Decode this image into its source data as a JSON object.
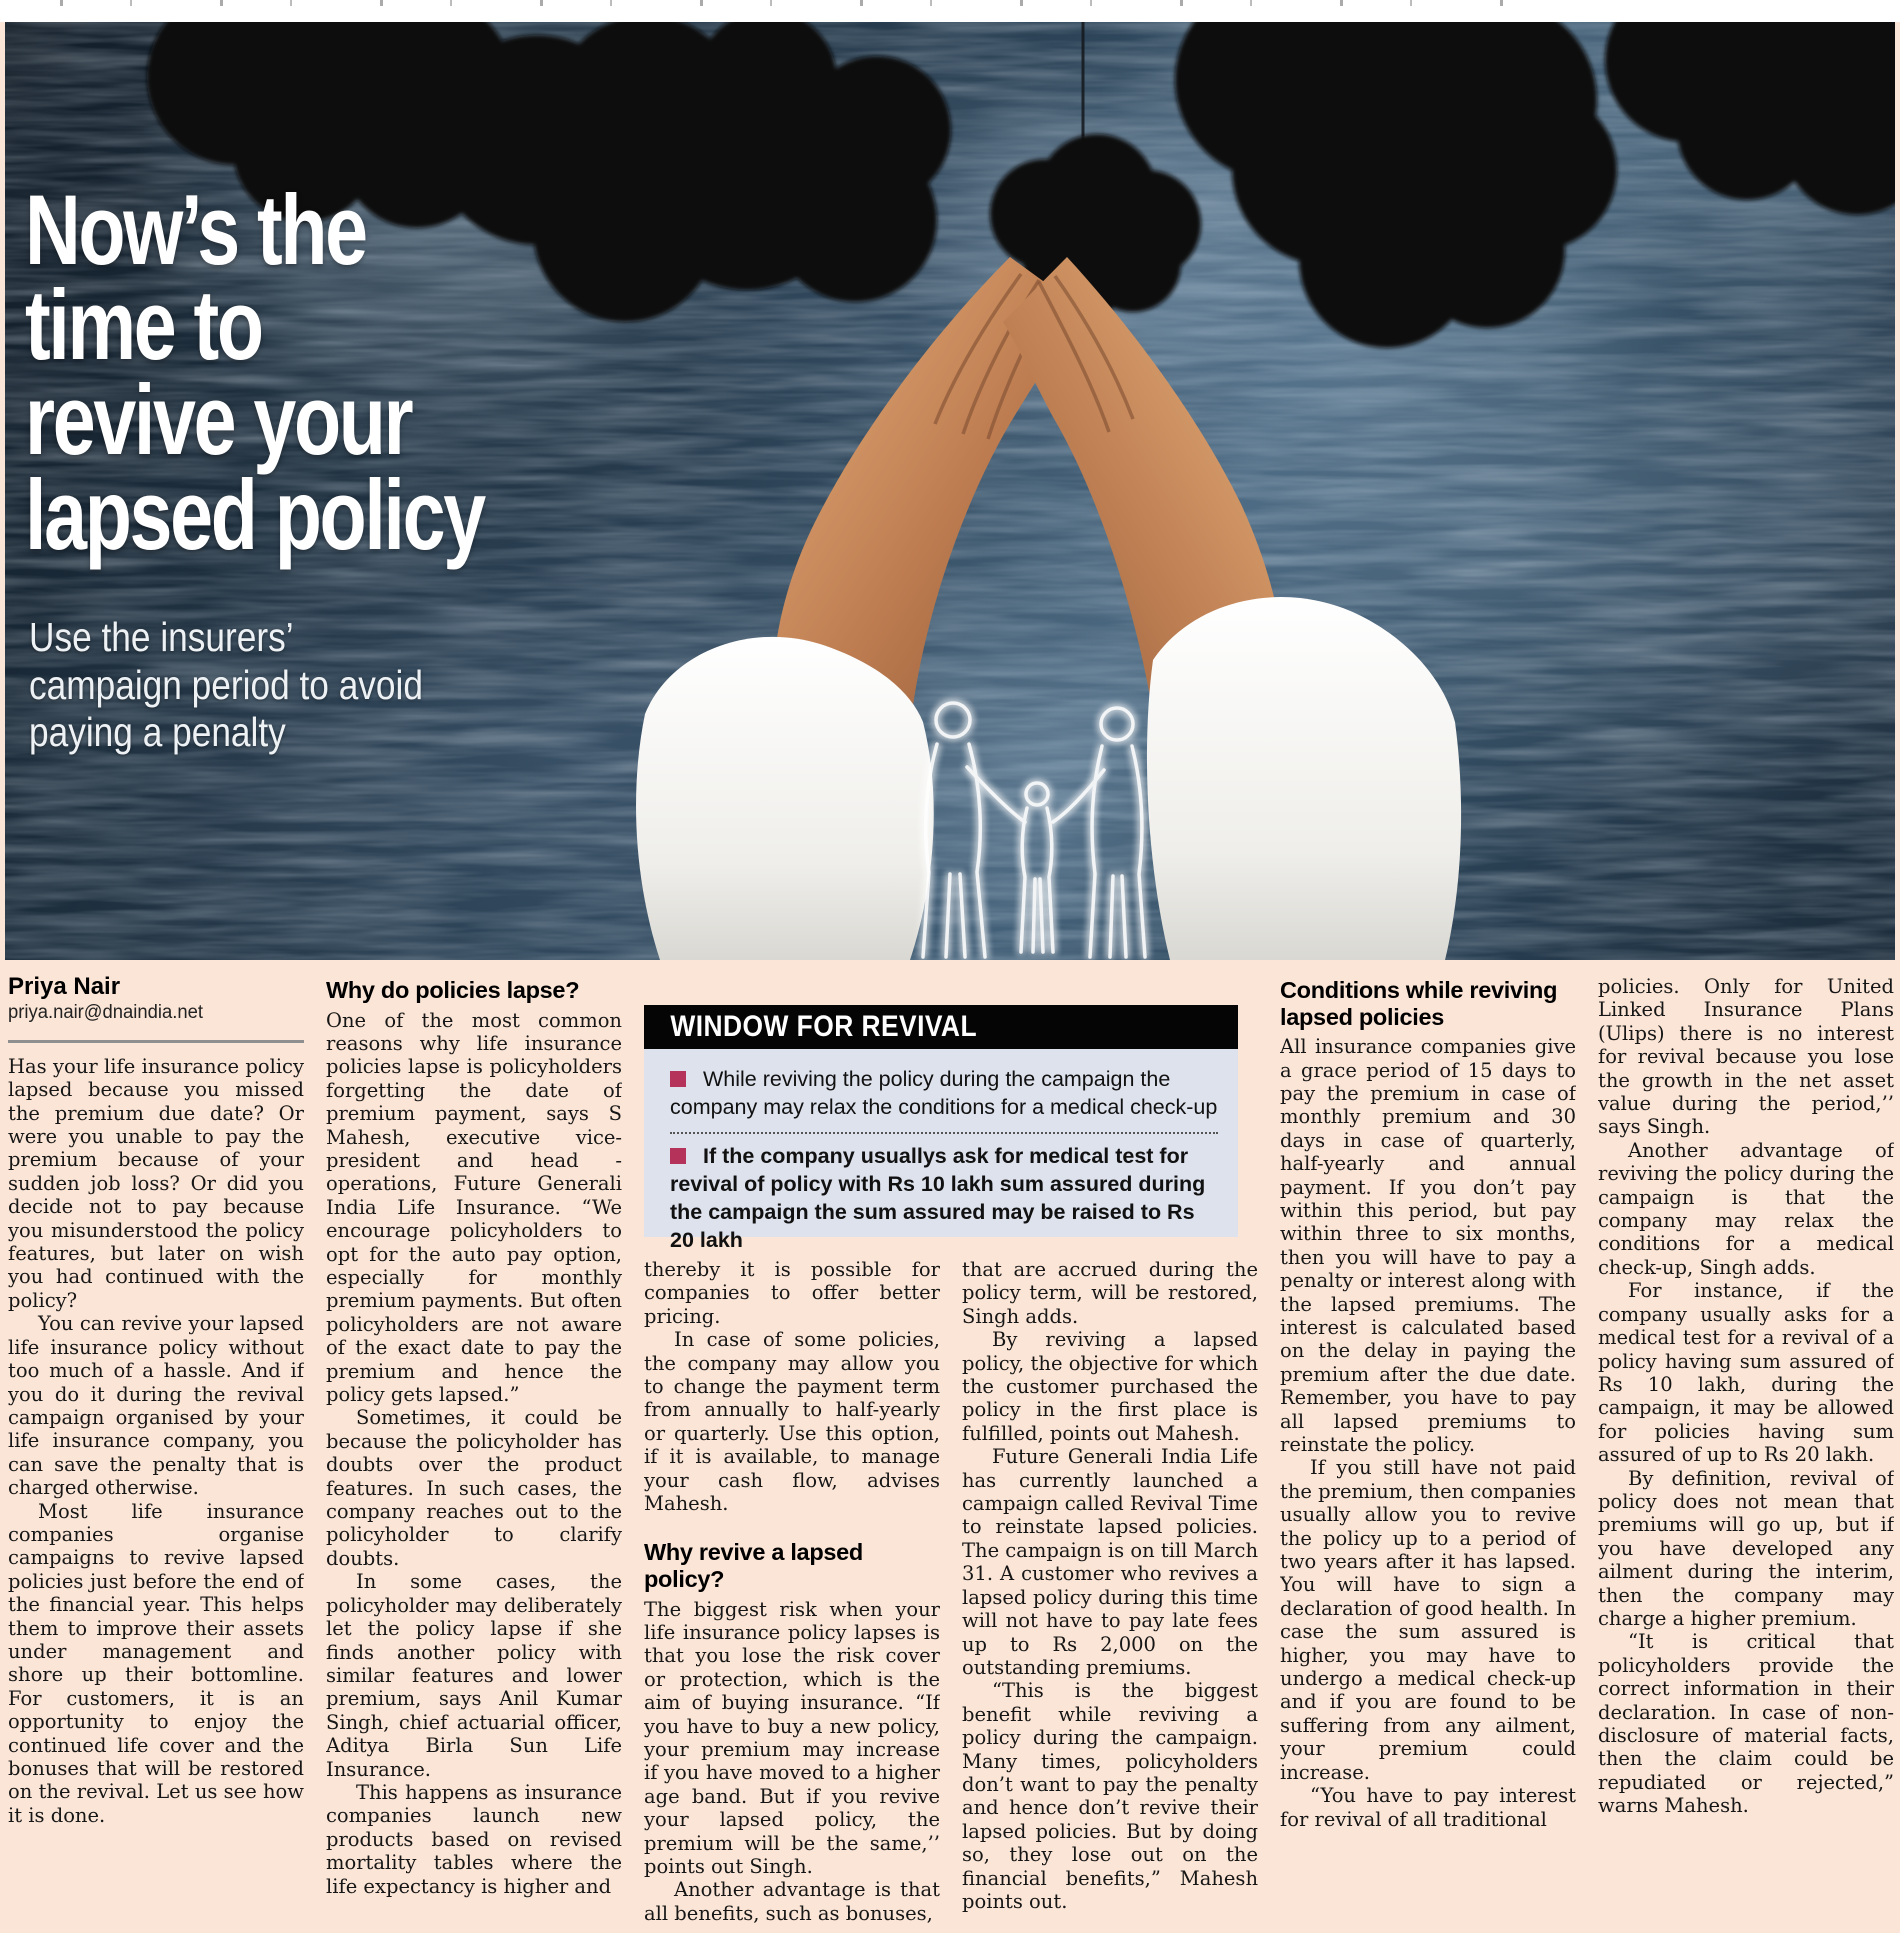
{
  "colors": {
    "page_bg": "#fbe5d6",
    "box_body_bg": "#dee2ed",
    "box_bar_bg": "#050505",
    "bullet_accent": "#b5335b",
    "headline_text": "#ffffff"
  },
  "hero": {
    "headline_lines": [
      "Now’s the",
      "time to",
      "revive your",
      "lapsed policy"
    ],
    "subhead_lines": [
      "Use the insurers’",
      "campaign period to avoid",
      "paying a penalty"
    ]
  },
  "byline": {
    "author": "Priya Nair",
    "email": "priya.nair@dnaindia.net"
  },
  "revival_box": {
    "title": "WINDOW FOR REVIVAL",
    "bullets": [
      {
        "bold": false,
        "text": "While reviving the policy during the campaign the company may relax the conditions for a medical check-up"
      },
      {
        "bold": true,
        "text": "If the company usuallys ask for medical test for revival of policy with Rs 10 lakh sum assured during the campaign the sum assured may be raised to Rs 20 lakh"
      }
    ]
  },
  "columns": [
    {
      "blocks": [
        {
          "type": "author"
        },
        {
          "type": "email"
        },
        {
          "type": "rule"
        },
        {
          "type": "para",
          "text": "Has your life insurance policy lapsed because you missed the premium due date? Or were you unable to pay the premium because of your sudden job loss? Or did you decide not to pay because you misunderstood the policy features, but later on wish you had continued with the policy?"
        },
        {
          "type": "para",
          "text": "You can revive your lapsed life insurance policy without too much of a hassle. And if you do it during the revival campaign organised by your life insurance company, you can save the penalty that is charged otherwise."
        },
        {
          "type": "para",
          "text": "Most life insurance companies organise campaigns to revive lapsed policies just before the end of the financial year. This helps them to improve their assets under management and shore up their bottomline. For customers, it is an opportunity to enjoy the continued life cover and the bonuses that will be restored on the revival. Let us see how it is done."
        }
      ]
    },
    {
      "blocks": [
        {
          "type": "heading",
          "text": "Why do policies lapse?"
        },
        {
          "type": "para",
          "text": "One of the most common reasons why life insurance policies lapse is policyholders forgetting the date of premium payment, says S Mahesh, executive vice-president and head - operations, Future Generali India Life Insurance. “We encourage policyholders to opt for the auto pay option, especially for monthly premium payments. But often policyholders are not aware of the exact date to pay the premium and hence the policy gets lapsed.”"
        },
        {
          "type": "para",
          "text": "Sometimes, it could be because the policyholder has doubts over the product features. In such cases, the company reaches out to the policyholder to clarify doubts."
        },
        {
          "type": "para",
          "text": "In some cases, the policyholder may deliberately let the policy lapse if she finds another policy with similar features and lower premium, says Anil Kumar Singh, chief actuarial officer, Aditya Birla Sun Life Insurance."
        },
        {
          "type": "para",
          "text": "This happens as insurance companies launch new products based on revised mortality tables where the life expectancy is higher and"
        }
      ]
    },
    {
      "blocks": [
        {
          "type": "para",
          "text": "thereby it is possible for companies to offer better pricing."
        },
        {
          "type": "para",
          "text": "In case of some policies, the company may allow you to change the payment term from annually to half-yearly or quarterly. Use this option, if it is available, to manage your cash flow, advises Mahesh."
        },
        {
          "type": "heading",
          "text": "Why revive a lapsed policy?"
        },
        {
          "type": "para",
          "text": "The biggest risk when your life insurance policy lapses is that you lose the risk cover or protection, which is the aim of buying insurance. “If you have to buy a new policy, your premium may increase if you have moved to a higher age band. But if you revive your lapsed policy, the premium will be the same,’’ points out Singh."
        },
        {
          "type": "para",
          "text": "Another advantage is that all benefits, such as bonuses,"
        }
      ]
    },
    {
      "blocks": [
        {
          "type": "para",
          "text": "that are accrued during the policy term, will be restored, Singh adds."
        },
        {
          "type": "para",
          "text": "By reviving a lapsed policy, the objective for which the customer purchased the policy in the first place is fulfilled, points out Mahesh."
        },
        {
          "type": "para",
          "text": "Future Generali India Life has currently launched a campaign called Revival Time to reinstate lapsed policies. The campaign is on till March 31. A customer who revives a lapsed policy during this time will not have to pay late fees up to Rs 2,000 on the outstanding premiums."
        },
        {
          "type": "para",
          "text": "“This is the biggest benefit while reviving a policy during the campaign. Many times, policyholders don’t want to pay the penalty and hence don’t revive their lapsed policies. But by doing so, they lose out on the financial benefits,” Mahesh points out."
        }
      ]
    },
    {
      "blocks": [
        {
          "type": "heading",
          "text": "Conditions while reviving lapsed policies"
        },
        {
          "type": "para",
          "text": "All insurance companies give a grace period of 15 days to pay the premium in case of monthly premium and 30 days in case of quarterly, half-yearly and annual payment. If you don’t pay within this period, but pay within three to six months, then you will have to pay a penalty or interest along with the lapsed premiums. The interest is calculated based on the delay in paying the premium after the due date. Remember, you have to pay all lapsed premiums to reinstate the policy."
        },
        {
          "type": "para",
          "text": "If you still have not paid the premium, then companies usually allow you to revive the policy up to a period of two years after it has lapsed. You will have to sign a declaration of good health. In case the sum assured is higher, you may have to undergo a medical check-up and if you are found to be suffering from any ailment, your premium could increase."
        },
        {
          "type": "para",
          "text": "“You have to pay interest for revival of all traditional"
        }
      ]
    },
    {
      "blocks": [
        {
          "type": "para",
          "text": "policies. Only for United Linked Insurance Plans (Ulips) there is no interest for revival because you lose the growth in the net asset value during the period,’’ says Singh."
        },
        {
          "type": "para",
          "text": "Another advantage of reviving the policy during the campaign is that the company may relax the conditions for a medical check-up, Singh adds."
        },
        {
          "type": "para",
          "text": "For instance, if the company usually asks for a medical test for a revival of a policy having sum assured of Rs 10 lakh, during the campaign, it may be allowed for policies having sum assured of up to Rs 20 lakh."
        },
        {
          "type": "para",
          "text": "By definition, revival of policy does not mean that premiums will go up, but if you have developed any ailment during the interim, then the company may charge a higher premium."
        },
        {
          "type": "para",
          "text": "“It is critical that policyholders provide the correct information in their declaration. In case of non-disclosure of material facts, then the claim could be repudiated or rejected,” warns Mahesh."
        }
      ]
    }
  ]
}
